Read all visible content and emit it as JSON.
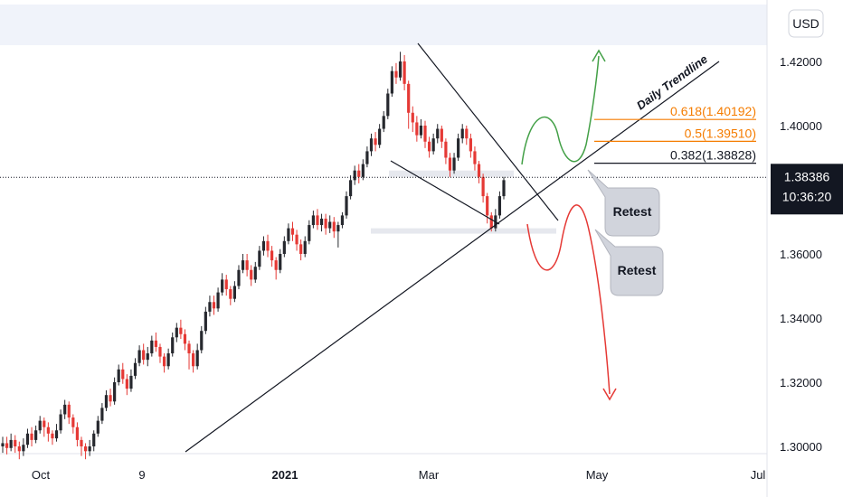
{
  "chart_data": {
    "type": "candlestick",
    "instrument_currency": "USD",
    "y_ticks": [
      1.42,
      1.4,
      1.38,
      1.36,
      1.34,
      1.32,
      1.3
    ],
    "y_tick_labels": [
      "1.42000",
      "1.40000",
      "1.36000",
      "1.34000",
      "1.32000",
      "1.30000"
    ],
    "ylim": [
      1.2955,
      1.4315
    ],
    "x_ticks": [
      {
        "label": "Oct",
        "bold": false
      },
      {
        "label": "9",
        "bold": false
      },
      {
        "label": "2021",
        "bold": true
      },
      {
        "label": "Mar",
        "bold": false
      },
      {
        "label": "May",
        "bold": false
      },
      {
        "label": "Jul",
        "bold": false
      }
    ],
    "current_price": "1.38386",
    "current_price_value": 1.38386,
    "countdown": "10:36:20",
    "fib_levels": [
      {
        "label": "0.618(1.40192)",
        "value": 1.40192,
        "color": "#f57c00"
      },
      {
        "label": "0.5(1.39510)",
        "value": 1.3951,
        "color": "#f57c00"
      },
      {
        "label": "0.382(1.38828)",
        "value": 1.38828,
        "color": "#131722"
      }
    ],
    "annotations": {
      "trendline_label": "Daily Trendline",
      "retest_labels": [
        "Retest",
        "Retest"
      ]
    },
    "candles": [
      [
        1.3,
        1.301,
        1.298,
        1.303
      ],
      [
        1.301,
        1.2995,
        1.2975,
        1.303
      ],
      [
        1.2995,
        1.302,
        1.2985,
        1.304
      ],
      [
        1.302,
        1.3,
        1.298,
        1.3035
      ],
      [
        1.3,
        1.2985,
        1.296,
        1.3015
      ],
      [
        1.2985,
        1.3005,
        1.297,
        1.3025
      ],
      [
        1.3005,
        1.304,
        1.2995,
        1.3055
      ],
      [
        1.304,
        1.302,
        1.3,
        1.306
      ],
      [
        1.302,
        1.305,
        1.301,
        1.3065
      ],
      [
        1.305,
        1.308,
        1.304,
        1.3095
      ],
      [
        1.308,
        1.306,
        1.303,
        1.309
      ],
      [
        1.306,
        1.304,
        1.3015,
        1.3075
      ],
      [
        1.304,
        1.3025,
        1.3005,
        1.305
      ],
      [
        1.3025,
        1.305,
        1.3015,
        1.307
      ],
      [
        1.305,
        1.31,
        1.304,
        1.3115
      ],
      [
        1.31,
        1.313,
        1.3085,
        1.3145
      ],
      [
        1.313,
        1.309,
        1.307,
        1.314
      ],
      [
        1.309,
        1.306,
        1.304,
        1.31
      ],
      [
        1.306,
        1.302,
        1.3,
        1.3075
      ],
      [
        1.302,
        1.3,
        1.297,
        1.303
      ],
      [
        1.3,
        1.2985,
        1.296,
        1.301
      ],
      [
        1.2985,
        1.3,
        1.297,
        1.302
      ],
      [
        1.3,
        1.304,
        1.2985,
        1.305
      ],
      [
        1.304,
        1.308,
        1.303,
        1.3095
      ],
      [
        1.308,
        1.312,
        1.307,
        1.3135
      ],
      [
        1.312,
        1.316,
        1.311,
        1.3175
      ],
      [
        1.316,
        1.314,
        1.3125,
        1.318
      ],
      [
        1.314,
        1.32,
        1.313,
        1.3215
      ],
      [
        1.32,
        1.324,
        1.319,
        1.3255
      ],
      [
        1.324,
        1.321,
        1.3195,
        1.326
      ],
      [
        1.321,
        1.318,
        1.316,
        1.3225
      ],
      [
        1.318,
        1.322,
        1.317,
        1.324
      ],
      [
        1.322,
        1.326,
        1.321,
        1.3275
      ],
      [
        1.326,
        1.33,
        1.325,
        1.3315
      ],
      [
        1.33,
        1.327,
        1.3255,
        1.332
      ],
      [
        1.327,
        1.329,
        1.325,
        1.331
      ],
      [
        1.329,
        1.333,
        1.328,
        1.3345
      ],
      [
        1.333,
        1.331,
        1.3295,
        1.3355
      ],
      [
        1.331,
        1.328,
        1.326,
        1.332
      ],
      [
        1.328,
        1.325,
        1.323,
        1.329
      ],
      [
        1.325,
        1.329,
        1.324,
        1.3305
      ],
      [
        1.329,
        1.334,
        1.328,
        1.3355
      ],
      [
        1.334,
        1.337,
        1.3325,
        1.3385
      ],
      [
        1.337,
        1.335,
        1.3335,
        1.3395
      ],
      [
        1.335,
        1.332,
        1.33,
        1.3365
      ],
      [
        1.332,
        1.329,
        1.324,
        1.333
      ],
      [
        1.329,
        1.325,
        1.323,
        1.33
      ],
      [
        1.325,
        1.33,
        1.324,
        1.332
      ],
      [
        1.33,
        1.336,
        1.329,
        1.3375
      ],
      [
        1.336,
        1.342,
        1.335,
        1.3435
      ],
      [
        1.342,
        1.345,
        1.3405,
        1.347
      ],
      [
        1.345,
        1.343,
        1.341,
        1.347
      ],
      [
        1.343,
        1.348,
        1.342,
        1.3495
      ],
      [
        1.348,
        1.352,
        1.347,
        1.354
      ],
      [
        1.352,
        1.349,
        1.347,
        1.3535
      ],
      [
        1.349,
        1.346,
        1.344,
        1.35
      ],
      [
        1.346,
        1.35,
        1.345,
        1.3515
      ],
      [
        1.35,
        1.355,
        1.349,
        1.3565
      ],
      [
        1.355,
        1.358,
        1.354,
        1.36
      ],
      [
        1.358,
        1.355,
        1.353,
        1.36
      ],
      [
        1.355,
        1.352,
        1.35,
        1.3565
      ],
      [
        1.352,
        1.356,
        1.351,
        1.3575
      ],
      [
        1.356,
        1.361,
        1.355,
        1.3625
      ],
      [
        1.361,
        1.364,
        1.3595,
        1.3655
      ],
      [
        1.364,
        1.361,
        1.359,
        1.366
      ],
      [
        1.361,
        1.358,
        1.356,
        1.3625
      ],
      [
        1.358,
        1.355,
        1.352,
        1.359
      ],
      [
        1.355,
        1.36,
        1.354,
        1.3615
      ],
      [
        1.36,
        1.364,
        1.359,
        1.3655
      ],
      [
        1.364,
        1.368,
        1.363,
        1.3695
      ],
      [
        1.368,
        1.366,
        1.364,
        1.37
      ],
      [
        1.366,
        1.363,
        1.361,
        1.3675
      ],
      [
        1.363,
        1.36,
        1.358,
        1.3645
      ],
      [
        1.36,
        1.364,
        1.359,
        1.3655
      ],
      [
        1.364,
        1.369,
        1.363,
        1.3705
      ],
      [
        1.369,
        1.372,
        1.368,
        1.3735
      ],
      [
        1.372,
        1.369,
        1.3675,
        1.374
      ],
      [
        1.369,
        1.371,
        1.367,
        1.3725
      ],
      [
        1.371,
        1.368,
        1.366,
        1.3725
      ],
      [
        1.368,
        1.37,
        1.3665,
        1.372
      ],
      [
        1.37,
        1.367,
        1.365,
        1.3715
      ],
      [
        1.367,
        1.369,
        1.362,
        1.37
      ],
      [
        1.369,
        1.372,
        1.368,
        1.373
      ],
      [
        1.372,
        1.378,
        1.371,
        1.3795
      ],
      [
        1.378,
        1.383,
        1.377,
        1.3845
      ],
      [
        1.383,
        1.386,
        1.3815,
        1.3875
      ],
      [
        1.386,
        1.384,
        1.382,
        1.388
      ],
      [
        1.384,
        1.388,
        1.383,
        1.3895
      ],
      [
        1.388,
        1.392,
        1.387,
        1.3935
      ],
      [
        1.392,
        1.396,
        1.3905,
        1.3975
      ],
      [
        1.396,
        1.394,
        1.392,
        1.398
      ],
      [
        1.394,
        1.399,
        1.393,
        1.4005
      ],
      [
        1.399,
        1.403,
        1.398,
        1.4045
      ],
      [
        1.403,
        1.41,
        1.402,
        1.4115
      ],
      [
        1.41,
        1.417,
        1.409,
        1.4185
      ],
      [
        1.417,
        1.415,
        1.413,
        1.4195
      ],
      [
        1.415,
        1.42,
        1.414,
        1.423
      ],
      [
        1.42,
        1.413,
        1.411,
        1.422
      ],
      [
        1.413,
        1.404,
        1.399,
        1.414
      ],
      [
        1.404,
        1.401,
        1.398,
        1.406
      ],
      [
        1.401,
        1.397,
        1.395,
        1.403
      ],
      [
        1.397,
        1.4,
        1.396,
        1.402
      ],
      [
        1.4,
        1.395,
        1.393,
        1.4015
      ],
      [
        1.395,
        1.392,
        1.39,
        1.3965
      ],
      [
        1.392,
        1.396,
        1.391,
        1.3975
      ],
      [
        1.396,
        1.399,
        1.3945,
        1.4005
      ],
      [
        1.399,
        1.395,
        1.393,
        1.4
      ],
      [
        1.395,
        1.39,
        1.388,
        1.396
      ],
      [
        1.39,
        1.386,
        1.384,
        1.3915
      ],
      [
        1.386,
        1.39,
        1.385,
        1.3915
      ],
      [
        1.39,
        1.396,
        1.389,
        1.3975
      ],
      [
        1.396,
        1.399,
        1.3945,
        1.4005
      ],
      [
        1.399,
        1.396,
        1.394,
        1.4
      ],
      [
        1.396,
        1.392,
        1.39,
        1.3975
      ],
      [
        1.392,
        1.388,
        1.386,
        1.3935
      ],
      [
        1.388,
        1.384,
        1.382,
        1.389
      ],
      [
        1.384,
        1.378,
        1.376,
        1.385
      ],
      [
        1.378,
        1.372,
        1.3695,
        1.379
      ],
      [
        1.372,
        1.368,
        1.367,
        1.373
      ],
      [
        1.368,
        1.372,
        1.367,
        1.374
      ],
      [
        1.372,
        1.378,
        1.371,
        1.3795
      ],
      [
        1.378,
        1.383,
        1.377,
        1.384
      ]
    ]
  }
}
